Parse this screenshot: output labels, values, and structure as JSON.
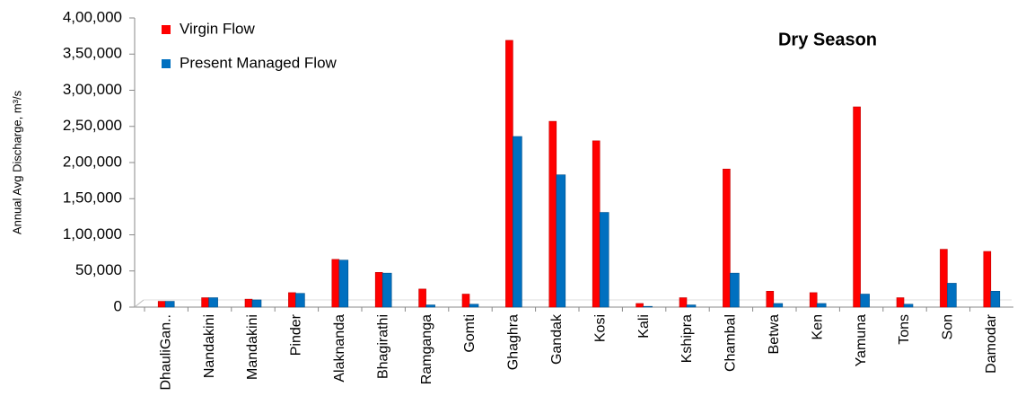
{
  "chart_data": {
    "type": "bar",
    "annotation": "Dry Season",
    "y_label": "Annual Avg Discharge, m³/s",
    "categories": [
      "DhauliGan..",
      "Nandakini",
      "Mandakini",
      "Pinder",
      "Alaknanda",
      "Bhagirathi",
      "Ramganga",
      "Gomti",
      "Ghaghra",
      "Gandak",
      "Kosi",
      "Kali",
      "Kshipra",
      "Chambal",
      "Betwa",
      "Ken",
      "Yamuna",
      "Tons",
      "Son",
      "Damodar"
    ],
    "series": [
      {
        "name": "Virgin Flow",
        "color": "#ff0000",
        "values": [
          8000,
          13000,
          11000,
          20000,
          66000,
          48000,
          25000,
          18000,
          369000,
          257000,
          230000,
          5000,
          13000,
          191000,
          22000,
          20000,
          277000,
          13000,
          80000,
          77000
        ]
      },
      {
        "name": "Present Managed Flow",
        "color": "#0070c0",
        "values": [
          8000,
          13000,
          10000,
          19000,
          65000,
          47000,
          3000,
          4000,
          236000,
          183000,
          131000,
          1000,
          3000,
          47000,
          5000,
          5000,
          18000,
          4000,
          33000,
          22000
        ]
      }
    ],
    "ylim": [
      0,
      400000
    ],
    "yticks": [
      0,
      {
        "value": 50000,
        "label": "50,000"
      },
      {
        "value": 100000,
        "label": "1,00,000"
      },
      {
        "value": 150000,
        "label": "1,50,000"
      },
      {
        "value": 200000,
        "label": "2,00,000"
      },
      {
        "value": 250000,
        "label": "2,50,000"
      },
      {
        "value": 300000,
        "label": "3,00,000"
      },
      {
        "value": 350000,
        "label": "3,50,000"
      },
      {
        "value": 400000,
        "label": "4,00,000"
      }
    ],
    "legend": "top-left"
  }
}
